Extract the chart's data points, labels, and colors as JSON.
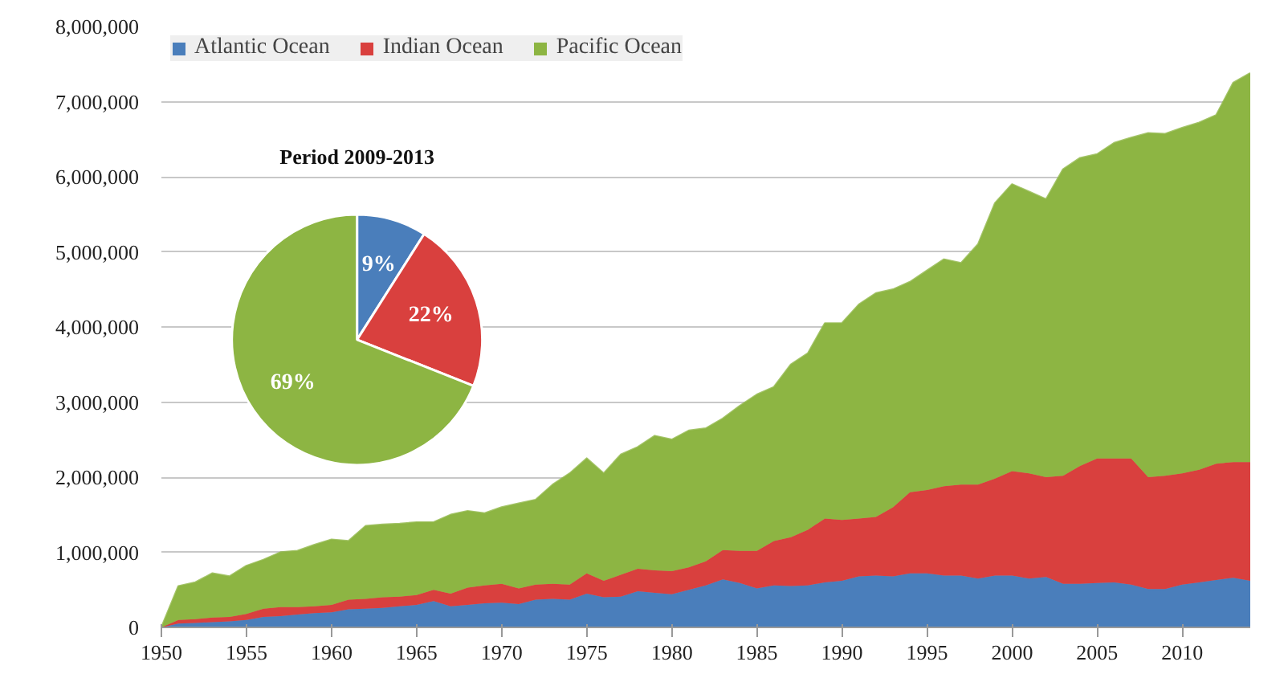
{
  "chart_data": [
    {
      "type": "area",
      "stacked": true,
      "x": [
        1950,
        1951,
        1952,
        1953,
        1954,
        1955,
        1956,
        1957,
        1958,
        1959,
        1960,
        1961,
        1962,
        1963,
        1964,
        1965,
        1966,
        1967,
        1968,
        1969,
        1970,
        1971,
        1972,
        1973,
        1974,
        1975,
        1976,
        1977,
        1978,
        1979,
        1980,
        1981,
        1982,
        1983,
        1984,
        1985,
        1986,
        1987,
        1988,
        1989,
        1990,
        1991,
        1992,
        1993,
        1994,
        1995,
        1996,
        1997,
        1998,
        1999,
        2000,
        2001,
        2002,
        2003,
        2004,
        2005,
        2006,
        2007,
        2008,
        2009,
        2010,
        2011,
        2012,
        2013,
        2014
      ],
      "series": [
        {
          "name": "Atlantic Ocean",
          "color": "#4a7ebb",
          "values": [
            0,
            50000,
            60000,
            70000,
            80000,
            100000,
            140000,
            150000,
            170000,
            190000,
            200000,
            240000,
            250000,
            260000,
            280000,
            300000,
            350000,
            280000,
            300000,
            320000,
            330000,
            310000,
            370000,
            380000,
            370000,
            450000,
            400000,
            410000,
            480000,
            460000,
            440000,
            500000,
            560000,
            640000,
            590000,
            520000,
            560000,
            550000,
            560000,
            600000,
            620000,
            680000,
            690000,
            680000,
            720000,
            720000,
            690000,
            690000,
            650000,
            690000,
            690000,
            650000,
            670000,
            580000,
            580000,
            590000,
            600000,
            570000,
            510000,
            510000,
            570000,
            600000,
            630000,
            660000,
            620000
          ]
        },
        {
          "name": "Indian Ocean",
          "color": "#d9403e",
          "values": [
            0,
            50000,
            50000,
            60000,
            60000,
            80000,
            110000,
            120000,
            100000,
            90000,
            100000,
            130000,
            130000,
            140000,
            130000,
            130000,
            150000,
            170000,
            230000,
            240000,
            250000,
            210000,
            200000,
            200000,
            200000,
            270000,
            220000,
            290000,
            300000,
            300000,
            310000,
            300000,
            320000,
            390000,
            430000,
            500000,
            590000,
            650000,
            740000,
            850000,
            810000,
            770000,
            780000,
            920000,
            1080000,
            1110000,
            1190000,
            1210000,
            1250000,
            1290000,
            1390000,
            1400000,
            1330000,
            1440000,
            1570000,
            1660000,
            1650000,
            1680000,
            1490000,
            1510000,
            1480000,
            1500000,
            1550000,
            1540000,
            1580000
          ]
        },
        {
          "name": "Pacific Ocean",
          "color": "#8db543",
          "values": [
            0,
            450000,
            490000,
            590000,
            540000,
            640000,
            650000,
            730000,
            750000,
            820000,
            870000,
            780000,
            970000,
            970000,
            970000,
            970000,
            900000,
            1050000,
            1020000,
            960000,
            1020000,
            1130000,
            1130000,
            1320000,
            1480000,
            1530000,
            1430000,
            1600000,
            1620000,
            1790000,
            1750000,
            1820000,
            1770000,
            1750000,
            1930000,
            2080000,
            2050000,
            2300000,
            2350000,
            2600000,
            2620000,
            2850000,
            2980000,
            2900000,
            2800000,
            2920000,
            3020000,
            2950000,
            3200000,
            3670000,
            3820000,
            3750000,
            3700000,
            4080000,
            4100000,
            4050000,
            4200000,
            4270000,
            4580000,
            4550000,
            4600000,
            4620000,
            4640000,
            5050000,
            5180000
          ]
        }
      ],
      "xlim": [
        1950,
        2014
      ],
      "xticks": [
        1950,
        1955,
        1960,
        1965,
        1970,
        1975,
        1980,
        1985,
        1990,
        1995,
        2000,
        2005,
        2010
      ],
      "ylim": [
        0,
        8000000
      ],
      "yticks": [
        {
          "value": 0,
          "label": "0"
        },
        {
          "value": 1000000,
          "label": "1,000,000"
        },
        {
          "value": 2000000,
          "label": "2,000,000"
        },
        {
          "value": 3000000,
          "label": "3,000,000"
        },
        {
          "value": 4000000,
          "label": "4,000,000"
        },
        {
          "value": 5000000,
          "label": "5,000,000"
        },
        {
          "value": 6000000,
          "label": "6,000,000"
        },
        {
          "value": 7000000,
          "label": "7,000,000"
        },
        {
          "value": 8000000,
          "label": "8,000,000"
        }
      ],
      "grid": "y",
      "legend": "top left"
    },
    {
      "type": "pie",
      "title": "Period 2009-2013",
      "categories": [
        null,
        null,
        null
      ],
      "values": [
        9,
        22,
        69
      ],
      "value_labels": [
        "9%",
        "22%",
        "69%"
      ],
      "colors": [
        "#4a7ebb",
        "#d9403e",
        "#8db543"
      ]
    }
  ]
}
